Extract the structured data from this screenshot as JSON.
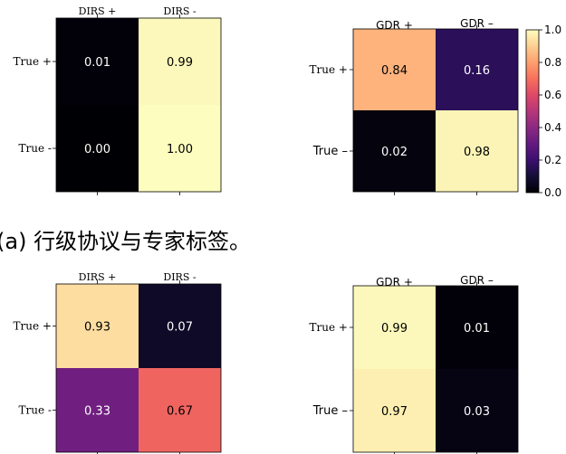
{
  "caption_a": "(a) 行级协议与专家标签。",
  "colorbar": {
    "ticks": [
      "1.0",
      "0.8",
      "0.6",
      "0.4",
      "0.2",
      "0.0"
    ],
    "range": [
      0,
      1
    ],
    "colormap": "magma"
  },
  "chart_data": [
    {
      "type": "heatmap",
      "col_labels": [
        "DIRS +",
        "DIRS -"
      ],
      "row_labels": [
        "True +",
        "True -"
      ],
      "values": [
        [
          0.01,
          0.99
        ],
        [
          0.0,
          1.0
        ]
      ],
      "cell_text": [
        [
          "0.01",
          "0.99"
        ],
        [
          "0.00",
          "1.00"
        ]
      ],
      "colormap": "magma",
      "vmin": 0,
      "vmax": 1
    },
    {
      "type": "heatmap",
      "col_labels": [
        "GDR +",
        "GDR –"
      ],
      "row_labels": [
        "True +",
        "True –"
      ],
      "values": [
        [
          0.84,
          0.16
        ],
        [
          0.02,
          0.98
        ]
      ],
      "cell_text": [
        [
          "0.84",
          "0.16"
        ],
        [
          "0.02",
          "0.98"
        ]
      ],
      "colormap": "magma",
      "vmin": 0,
      "vmax": 1,
      "colorbar": true
    },
    {
      "type": "heatmap",
      "col_labels": [
        "DIRS +",
        "DIRS -"
      ],
      "row_labels": [
        "True +",
        "True -"
      ],
      "values": [
        [
          0.93,
          0.07
        ],
        [
          0.33,
          0.67
        ]
      ],
      "cell_text": [
        [
          "0.93",
          "0.07"
        ],
        [
          "0.33",
          "0.67"
        ]
      ],
      "colormap": "magma",
      "vmin": 0,
      "vmax": 1
    },
    {
      "type": "heatmap",
      "col_labels": [
        "GDR +",
        "GDR –"
      ],
      "row_labels": [
        "True +",
        "True –"
      ],
      "values": [
        [
          0.99,
          0.01
        ],
        [
          0.97,
          0.03
        ]
      ],
      "cell_text": [
        [
          "0.99",
          "0.01"
        ],
        [
          "0.97",
          "0.03"
        ]
      ],
      "colormap": "magma",
      "vmin": 0,
      "vmax": 1
    }
  ]
}
